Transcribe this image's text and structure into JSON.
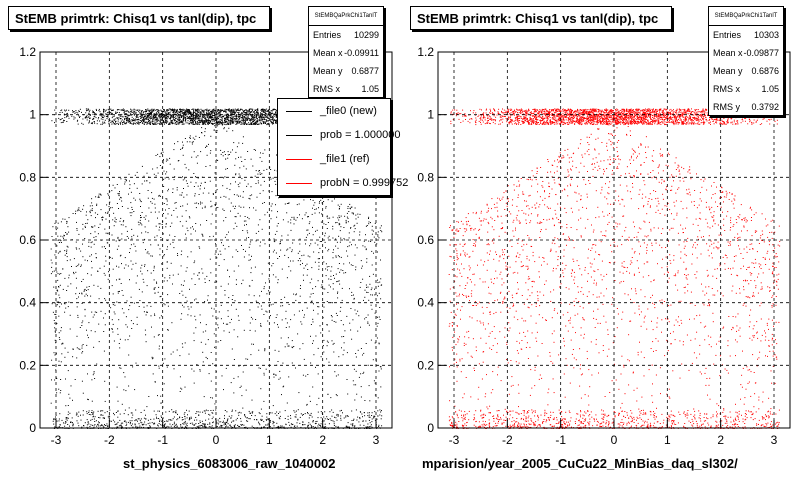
{
  "chart_data": [
    {
      "type": "scatter",
      "title": "StEMB primtrk: Chisq1 vs tanl(dip), tpc",
      "xlabel": "st_physics_6083006_raw_1040002",
      "ylabel": "",
      "xlim": [
        -3.3,
        3.3
      ],
      "ylim": [
        0,
        1.2
      ],
      "x_ticks": [
        -3,
        -2,
        -1,
        0,
        1,
        2,
        3
      ],
      "y_ticks": [
        0,
        0.2,
        0.4,
        0.6,
        0.8,
        1,
        1.2
      ],
      "x_tick_labels": [
        "-3",
        "-2",
        "-1",
        "0",
        "1",
        "2",
        "3"
      ],
      "y_tick_labels": [
        "0",
        "0.2",
        "0.4",
        "0.6",
        "0.8",
        "1",
        "1.2"
      ],
      "grid": true,
      "marker_color": "#000000",
      "stats": {
        "name": "StEMBQaPrkChi1TanlT",
        "entries_label": "Entries",
        "entries": "10299",
        "mean_x_label": "Mean x",
        "mean_x": "-0.09911",
        "mean_y_label": "Mean y",
        "mean_y": "0.6877",
        "rms_x_label": "RMS x",
        "rms_x": "1.05"
      },
      "legend": {
        "placement": "top-right",
        "entries": [
          {
            "label": "_file0 (new)",
            "color": "#000000"
          },
          {
            "label": "prob = 1.000000",
            "color": "#000000"
          },
          {
            "label": "_file1 (ref)",
            "color": "#ff0000"
          },
          {
            "label": "probN = 0.999752",
            "color": "#ff0000"
          }
        ]
      },
      "distribution": {
        "dense_band_y": [
          0.97,
          1.02
        ],
        "low_band_y": [
          0.0,
          0.06
        ],
        "x_range": [
          -3.1,
          3.1
        ]
      }
    },
    {
      "type": "scatter",
      "title": "StEMB primtrk: Chisq1 vs tanl(dip), tpc",
      "xlabel": "mparision/year_2005_CuCu22_MinBias_daq_sl302/",
      "ylabel": "",
      "xlim": [
        -3.3,
        3.3
      ],
      "ylim": [
        0,
        1.2
      ],
      "x_ticks": [
        -3,
        -2,
        -1,
        0,
        1,
        2,
        3
      ],
      "y_ticks": [
        0,
        0.2,
        0.4,
        0.6,
        0.8,
        1,
        1.2
      ],
      "x_tick_labels": [
        "-3",
        "-2",
        "-1",
        "0",
        "1",
        "2",
        "3"
      ],
      "y_tick_labels": [
        "0",
        "0.2",
        "0.4",
        "0.6",
        "0.8",
        "1",
        "1.2"
      ],
      "grid": true,
      "marker_color": "#ff0000",
      "stats": {
        "name": "StEMBQaPrkChi1TanlT",
        "entries_label": "Entries",
        "entries": "10303",
        "mean_x_label": "Mean x",
        "mean_x": "-0.09877",
        "mean_y_label": "Mean y",
        "mean_y": "0.6876",
        "rms_x_label": "RMS x",
        "rms_x": "1.05",
        "rms_y_label": "RMS y",
        "rms_y": "0.3792"
      },
      "distribution": {
        "dense_band_y": [
          0.97,
          1.02
        ],
        "low_band_y": [
          0.0,
          0.06
        ],
        "x_range": [
          -3.1,
          3.1
        ]
      }
    }
  ]
}
